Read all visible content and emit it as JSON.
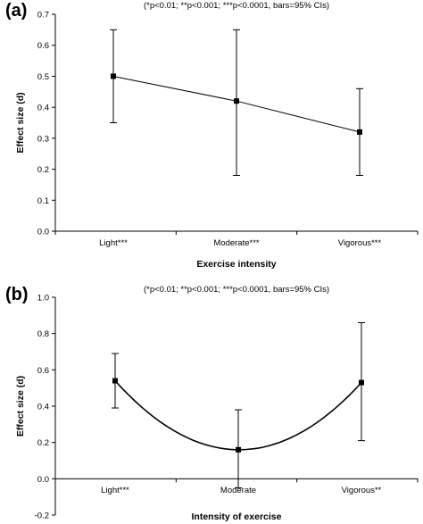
{
  "chart_data": [
    {
      "type": "line",
      "panel_label": "(a)",
      "note": "(*p<0.01; **p<0.001; ***p<0.0001, bars=95% CIs)",
      "xlabel": "Exercise intensity",
      "ylabel": "Effect size (d)",
      "ylim": [
        0,
        0.7
      ],
      "yticks": [
        "0.0",
        "0.1",
        "0.2",
        "0.3",
        "0.4",
        "0.5",
        "0.6",
        "0.7"
      ],
      "categories": [
        "Light***",
        "Moderate***",
        "Vigorous***"
      ],
      "series": [
        {
          "values": [
            0.5,
            0.42,
            0.32
          ],
          "ci_low": [
            0.35,
            0.18,
            0.18
          ],
          "ci_high": [
            0.65,
            0.65,
            0.46
          ]
        }
      ],
      "fit": "linear",
      "grid": false
    },
    {
      "type": "line",
      "panel_label": "(b)",
      "note": "(*p<0.01; **p<0.001; ***p<0.0001, bars=95% CIs)",
      "xlabel": "Intensity of exercise",
      "ylabel": "Effect size (d)",
      "ylim": [
        -0.2,
        1.0
      ],
      "yticks": [
        "-0.2",
        "0.0",
        "0.2",
        "0.4",
        "0.6",
        "0.8",
        "1.0"
      ],
      "categories": [
        "Light***",
        "Moderate",
        "Vigorous**"
      ],
      "series": [
        {
          "values": [
            0.54,
            0.16,
            0.53
          ],
          "ci_low": [
            0.39,
            -0.05,
            0.21
          ],
          "ci_high": [
            0.69,
            0.38,
            0.86
          ]
        }
      ],
      "fit": "quadratic",
      "grid": false
    }
  ]
}
